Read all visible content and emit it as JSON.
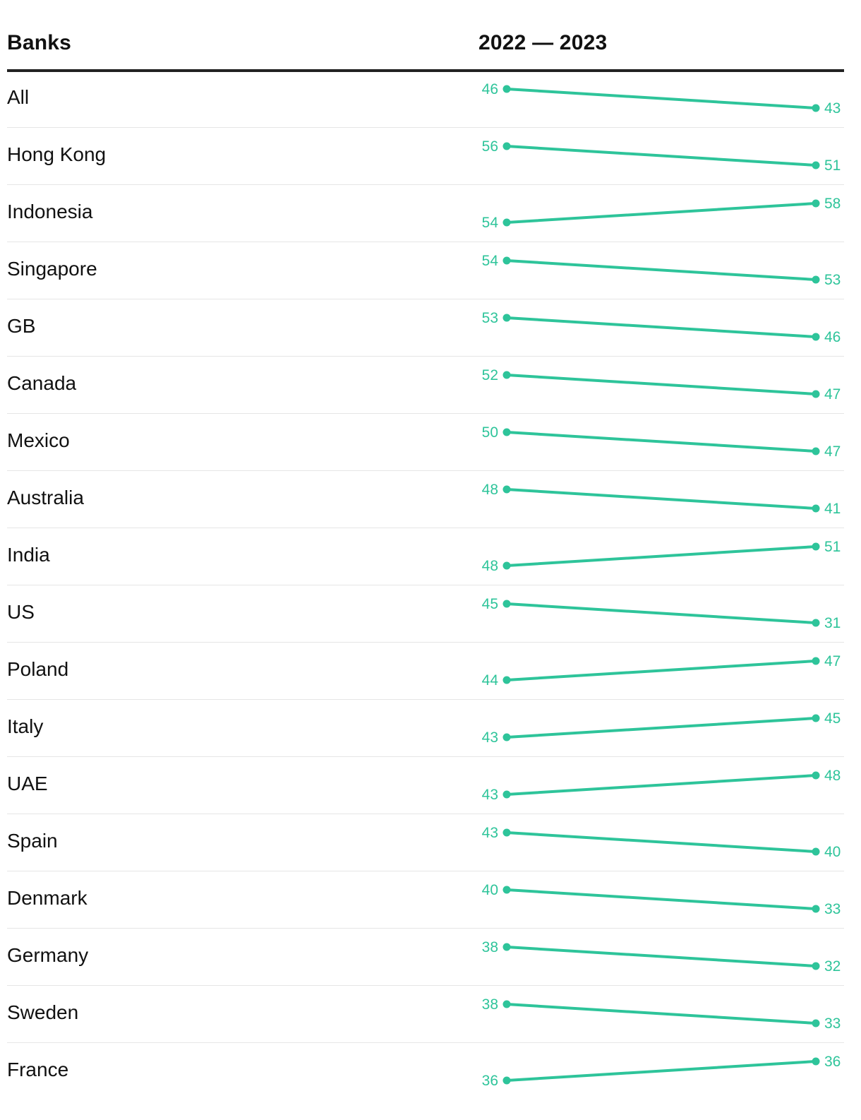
{
  "header": {
    "label_col": "Banks",
    "years_col": "2022 — 2023"
  },
  "colors": {
    "accent": "#2ec49a",
    "rule": "#222222",
    "divider": "#e6e6e6"
  },
  "chart_data": {
    "type": "slope",
    "x": [
      "2022",
      "2023"
    ],
    "categories": [
      "All",
      "Hong Kong",
      "Indonesia",
      "Singapore",
      "GB",
      "Canada",
      "Mexico",
      "Australia",
      "India",
      "US",
      "Poland",
      "Italy",
      "UAE",
      "Spain",
      "Denmark",
      "Germany",
      "Sweden",
      "France"
    ],
    "series": [
      {
        "values": [
          46,
          56,
          54,
          54,
          53,
          52,
          50,
          48,
          48,
          45,
          44,
          43,
          43,
          43,
          40,
          38,
          38,
          36
        ]
      },
      {
        "values": [
          43,
          51,
          58,
          53,
          46,
          47,
          47,
          41,
          51,
          31,
          47,
          45,
          48,
          40,
          33,
          32,
          33,
          36
        ]
      }
    ]
  }
}
